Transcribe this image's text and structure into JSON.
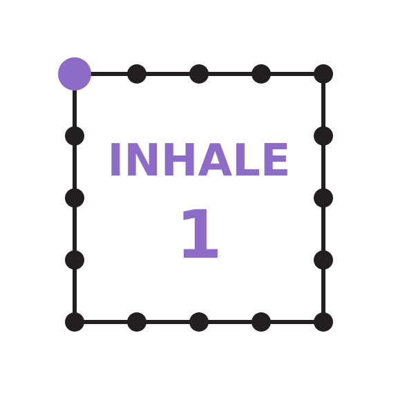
{
  "breathing": {
    "phase": "INHALE",
    "count": "1",
    "active_dot": 0,
    "dots_per_side": 5
  },
  "colors": {
    "accent": "#8c6cc6",
    "line": "#231f20",
    "background": "#ffffff"
  }
}
